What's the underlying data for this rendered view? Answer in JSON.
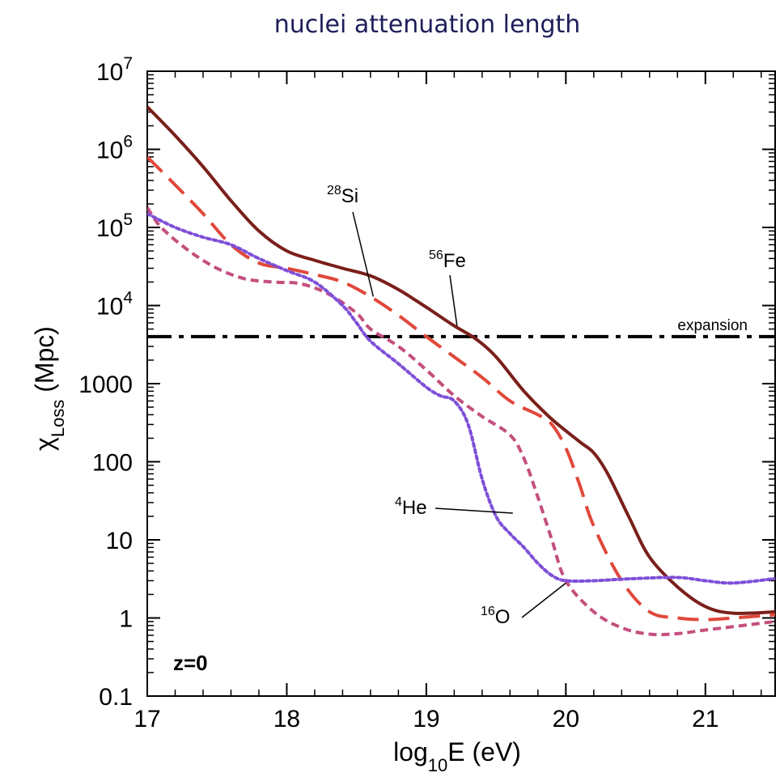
{
  "chart_data": {
    "type": "line",
    "title": "nuclei attenuation length",
    "xlabel": {
      "main": "log",
      "sub": "10",
      "rest": "E (eV)"
    },
    "ylabel": {
      "main": "χ",
      "sub": "Loss",
      "rest": " (Mpc)"
    },
    "x_scale": "linear",
    "y_scale": "log",
    "xlim": [
      17,
      21.5
    ],
    "ylim": [
      0.1,
      10000000
    ],
    "x_ticks": [
      {
        "value": 17,
        "label": "17"
      },
      {
        "value": 18,
        "label": "18"
      },
      {
        "value": 19,
        "label": "19"
      },
      {
        "value": 20,
        "label": "20"
      },
      {
        "value": 21,
        "label": "21"
      }
    ],
    "y_ticks": [
      {
        "value": 0.1,
        "label": "0.1"
      },
      {
        "value": 1,
        "label": "1"
      },
      {
        "value": 10,
        "label": "10"
      },
      {
        "value": 100,
        "label": "100"
      },
      {
        "value": 1000,
        "label": "1000"
      },
      {
        "value": 10000,
        "label": "10",
        "sup": "4"
      },
      {
        "value": 100000,
        "label": "10",
        "sup": "5"
      },
      {
        "value": 1000000,
        "label": "10",
        "sup": "6"
      },
      {
        "value": 10000000,
        "label": "10",
        "sup": "7"
      }
    ],
    "grid": false,
    "reference_line": {
      "name": "expansion",
      "y": 4000
    },
    "inset_label": "z=0",
    "series": [
      {
        "name": "56Fe",
        "label_sup": "56",
        "label_main": "Fe",
        "color": "#7a1f1a",
        "style": "solid",
        "x": [
          17.0,
          17.2,
          17.4,
          17.6,
          17.8,
          18.0,
          18.2,
          18.4,
          18.6,
          18.8,
          19.0,
          19.2,
          19.35,
          19.5,
          19.7,
          19.9,
          20.1,
          20.2,
          20.3,
          20.45,
          20.6,
          20.8,
          21.0,
          21.2,
          21.5
        ],
        "y": [
          3500000,
          1500000,
          600000,
          220000,
          90000,
          50000,
          38000,
          30000,
          24000,
          16000,
          9500,
          5500,
          3800,
          2200,
          800,
          350,
          180,
          130,
          70,
          20,
          6,
          2.5,
          1.4,
          1.15,
          1.2
        ]
      },
      {
        "name": "28Si",
        "label_sup": "28",
        "label_main": "Si",
        "color": "#e0483a",
        "style": "dashed",
        "x": [
          17.0,
          17.2,
          17.4,
          17.6,
          17.8,
          18.0,
          18.2,
          18.4,
          18.6,
          18.8,
          19.0,
          19.2,
          19.4,
          19.6,
          19.8,
          19.9,
          20.0,
          20.1,
          20.2,
          20.4,
          20.6,
          20.8,
          21.0,
          21.2,
          21.5
        ],
        "y": [
          800000,
          350000,
          150000,
          60000,
          35000,
          30000,
          25000,
          20000,
          13000,
          7500,
          4000,
          2200,
          1200,
          600,
          400,
          300,
          150,
          50,
          15,
          3,
          1.2,
          1.0,
          0.95,
          1.0,
          1.1
        ]
      },
      {
        "name": "16O",
        "label_sup": "16",
        "label_main": "O",
        "color": "#c44f7e",
        "style": "short-dashed",
        "x": [
          17.0,
          17.1,
          17.3,
          17.5,
          17.7,
          17.9,
          18.1,
          18.3,
          18.5,
          18.6,
          18.8,
          19.0,
          19.2,
          19.4,
          19.6,
          19.7,
          19.8,
          19.9,
          20.0,
          20.2,
          20.4,
          20.6,
          20.8,
          21.0,
          21.5
        ],
        "y": [
          180000,
          100000,
          50000,
          30000,
          22000,
          20000,
          19000,
          14000,
          8000,
          5000,
          3000,
          1500,
          700,
          380,
          220,
          110,
          35,
          10,
          3,
          1.2,
          0.75,
          0.62,
          0.63,
          0.7,
          0.9
        ]
      },
      {
        "name": "4He",
        "label_sup": "4",
        "label_main": "He",
        "color": "#7f4fd8",
        "style": "dotted",
        "x": [
          17.0,
          17.2,
          17.4,
          17.6,
          17.8,
          18.0,
          18.2,
          18.4,
          18.5,
          18.6,
          18.8,
          19.0,
          19.1,
          19.2,
          19.3,
          19.4,
          19.5,
          19.6,
          19.7,
          19.8,
          19.9,
          20.0,
          20.2,
          20.5,
          20.8,
          21.0,
          21.2,
          21.5
        ],
        "y": [
          150000,
          100000,
          75000,
          60000,
          40000,
          28000,
          20000,
          10000,
          6000,
          3500,
          1800,
          900,
          700,
          600,
          300,
          60,
          20,
          12,
          8,
          5,
          3.5,
          3.0,
          3.0,
          3.2,
          3.3,
          3.0,
          2.8,
          3.2
        ]
      }
    ],
    "annotations": [
      {
        "series": "28Si",
        "point": [
          18.62,
          13000
        ]
      },
      {
        "series": "56Fe",
        "point": [
          19.22,
          5500
        ]
      },
      {
        "series": "4He",
        "point": [
          19.62,
          22
        ]
      },
      {
        "series": "16O",
        "point": [
          20.0,
          2.8
        ]
      }
    ]
  }
}
